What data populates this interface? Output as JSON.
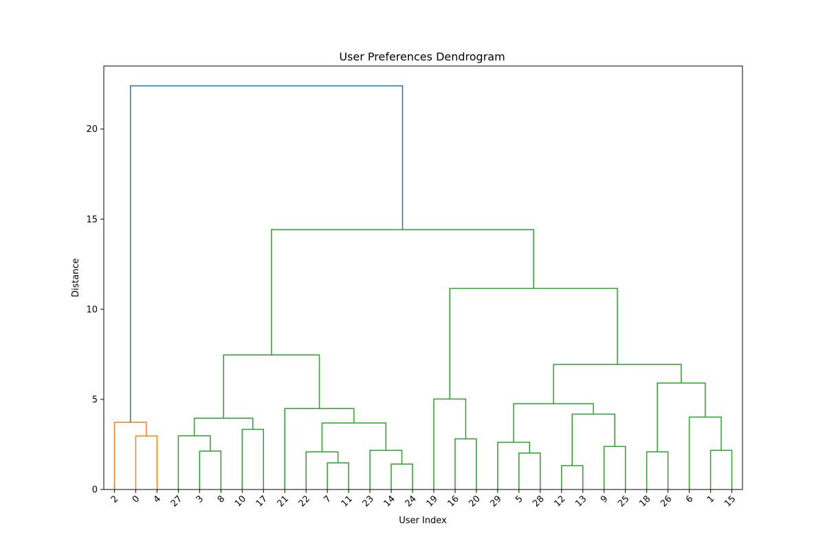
{
  "chart_data": {
    "type": "dendrogram",
    "title": "User Preferences Dendrogram",
    "xlabel": "User Index",
    "ylabel": "Distance",
    "ylim": [
      0,
      23.5
    ],
    "yticks": [
      0,
      5,
      10,
      15,
      20
    ],
    "leaves": [
      "2",
      "0",
      "4",
      "27",
      "3",
      "8",
      "10",
      "17",
      "21",
      "22",
      "7",
      "11",
      "23",
      "14",
      "24",
      "19",
      "16",
      "20",
      "29",
      "5",
      "28",
      "12",
      "13",
      "9",
      "25",
      "18",
      "26",
      "6",
      "1",
      "15"
    ],
    "colors": {
      "orange": "#ff7f0e",
      "green": "#2ca02c",
      "blue": "#1f77b4"
    },
    "links": [
      {
        "l": "0",
        "r": "4",
        "h": 2.97,
        "color": "orange"
      },
      {
        "l": "2",
        "r": "0,4",
        "h": 3.73,
        "color": "orange"
      },
      {
        "l": "3",
        "r": "8",
        "h": 2.13,
        "color": "green"
      },
      {
        "l": "27",
        "r": "3,8",
        "h": 2.98,
        "color": "green"
      },
      {
        "l": "10",
        "r": "17",
        "h": 3.34,
        "color": "green"
      },
      {
        "l": "27,3,8",
        "r": "10,17",
        "h": 3.96,
        "color": "green"
      },
      {
        "l": "7",
        "r": "11",
        "h": 1.48,
        "color": "green"
      },
      {
        "l": "22",
        "r": "7,11",
        "h": 2.09,
        "color": "green"
      },
      {
        "l": "14",
        "r": "24",
        "h": 1.41,
        "color": "green"
      },
      {
        "l": "23",
        "r": "14,24",
        "h": 2.17,
        "color": "green"
      },
      {
        "l": "22,7,11",
        "r": "23,14,24",
        "h": 3.69,
        "color": "green"
      },
      {
        "l": "21",
        "r": "22..24",
        "h": 4.49,
        "color": "green"
      },
      {
        "l": "27..17",
        "r": "21..24",
        "h": 7.47,
        "color": "green"
      },
      {
        "l": "16",
        "r": "20",
        "h": 2.81,
        "color": "green"
      },
      {
        "l": "19",
        "r": "16,20",
        "h": 5.02,
        "color": "green"
      },
      {
        "l": "5",
        "r": "28",
        "h": 2.02,
        "color": "green"
      },
      {
        "l": "29",
        "r": "5,28",
        "h": 2.62,
        "color": "green"
      },
      {
        "l": "12",
        "r": "13",
        "h": 1.32,
        "color": "green"
      },
      {
        "l": "9",
        "r": "25",
        "h": 2.39,
        "color": "green"
      },
      {
        "l": "12,13",
        "r": "9,25",
        "h": 4.18,
        "color": "green"
      },
      {
        "l": "29,5,28",
        "r": "12,13,9,25",
        "h": 4.76,
        "color": "green"
      },
      {
        "l": "18",
        "r": "26",
        "h": 2.09,
        "color": "green"
      },
      {
        "l": "1",
        "r": "15",
        "h": 2.17,
        "color": "green"
      },
      {
        "l": "6",
        "r": "1,15",
        "h": 4.02,
        "color": "green"
      },
      {
        "l": "18,26",
        "r": "6,1,15",
        "h": 5.91,
        "color": "green"
      },
      {
        "l": "29..25",
        "r": "18..15",
        "h": 6.94,
        "color": "green"
      },
      {
        "l": "19,16,20",
        "r": "29..15",
        "h": 11.16,
        "color": "green"
      },
      {
        "l": "27..24",
        "r": "19..15",
        "h": 14.42,
        "color": "green"
      },
      {
        "l": "2,0,4",
        "r": "27..15",
        "h": 22.4,
        "color": "blue"
      }
    ]
  }
}
